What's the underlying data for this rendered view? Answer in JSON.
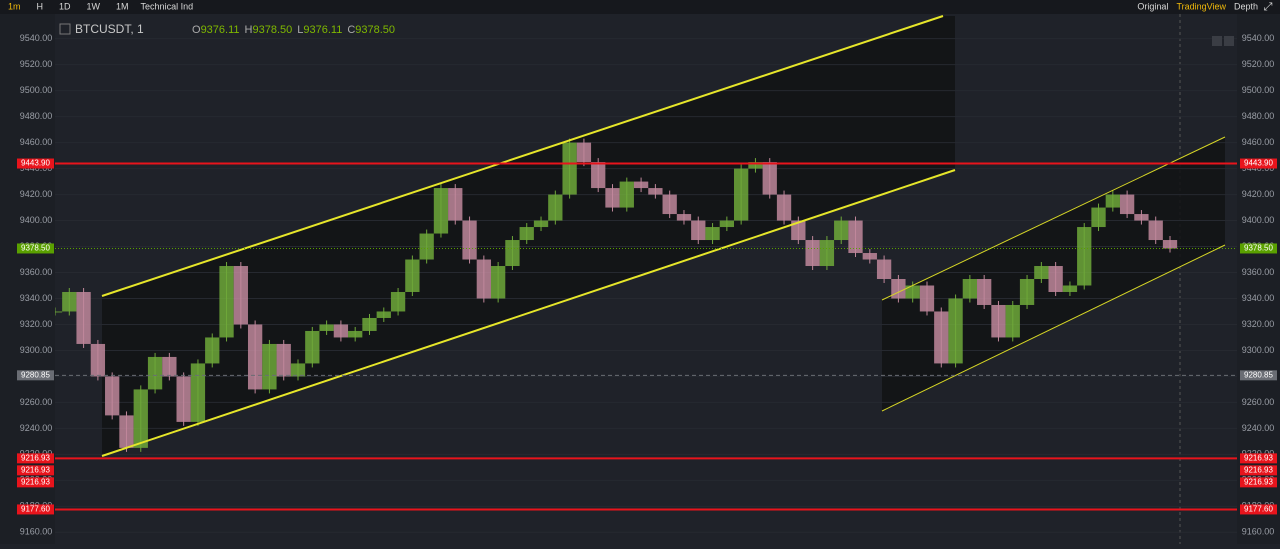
{
  "toolbar": {
    "intervals": [
      "1m",
      "H",
      "1D",
      "1W",
      "1M"
    ],
    "indicators": "Technical Ind",
    "views": [
      "Original",
      "TradingView",
      "Depth"
    ]
  },
  "legend": {
    "symbol": "BTCUSDT, 1",
    "ohlc": [
      {
        "key": "O",
        "value": "9376.11"
      },
      {
        "key": "H",
        "value": "9378.50"
      },
      {
        "key": "L",
        "value": "9376.11"
      },
      {
        "key": "C",
        "value": "9378.50"
      }
    ]
  },
  "chart_data": {
    "type": "candlestick",
    "series": [
      {
        "name": "BTCUSDT",
        "color": "#b98a99",
        "values": [
          9330,
          9345,
          9305,
          9280,
          9250,
          9225,
          9270,
          9295,
          9280,
          9245,
          9290,
          9310,
          9365,
          9320,
          9270,
          9305,
          9280,
          9290,
          9315,
          9320,
          9310,
          9315,
          9325,
          9330,
          9345,
          9370,
          9390,
          9425,
          9400,
          9370,
          9340,
          9365,
          9385,
          9395,
          9400,
          9420,
          9460,
          9445,
          9425,
          9410,
          9430,
          9425,
          9420,
          9405,
          9400,
          9385,
          9395,
          9400,
          9440,
          9445,
          9420,
          9400,
          9385,
          9365,
          9385,
          9400,
          9375,
          9370,
          9355,
          9340,
          9350,
          9330,
          9290,
          9340,
          9355,
          9335,
          9310,
          9335,
          9355,
          9365,
          9345,
          9350,
          9395,
          9410,
          9420,
          9405,
          9400,
          9385,
          9378.5
        ]
      }
    ],
    "ylim": [
      9151,
      9559
    ],
    "yticks": [
      {
        "value": 9160,
        "label": "9160.00"
      },
      {
        "value": 9180,
        "label": "9180.00"
      },
      {
        "value": 9200,
        "label": "9200.00"
      },
      {
        "value": 9220,
        "label": "9220.00"
      },
      {
        "value": 9240,
        "label": "9240.00"
      },
      {
        "value": 9260,
        "label": "9260.00"
      },
      {
        "value": 9280,
        "label": "9280.00"
      },
      {
        "value": 9300,
        "label": "9300.00"
      },
      {
        "value": 9320,
        "label": "9320.00"
      },
      {
        "value": 9340,
        "label": "9340.00"
      },
      {
        "value": 9360,
        "label": "9360.00"
      },
      {
        "value": 9380,
        "label": "9380.00"
      },
      {
        "value": 9400,
        "label": "9400.00"
      },
      {
        "value": 9420,
        "label": "9420.00"
      },
      {
        "value": 9440,
        "label": "9440.00"
      },
      {
        "value": 9460,
        "label": "9460.00"
      },
      {
        "value": 9480,
        "label": "9480.00"
      },
      {
        "value": 9500,
        "label": "9500.00"
      },
      {
        "value": 9520,
        "label": "9520.00"
      },
      {
        "value": 9540,
        "label": "9540.00"
      }
    ],
    "price_lines": [
      {
        "value": 9443.9,
        "label": "9443.90",
        "color": "#e8141c"
      },
      {
        "value": 9378.5,
        "label": "9378.50",
        "color": "#5aa000"
      },
      {
        "value": 9280.85,
        "label": "9280.85",
        "color": "#6a6d74"
      },
      {
        "value": 9216.93,
        "label": "9216.93",
        "color": "#e8141c"
      },
      {
        "value": 9216.93,
        "label": "9216.93",
        "color": "#e8141c"
      },
      {
        "value": 9216.93,
        "label": "9216.93",
        "color": "#e8141c"
      },
      {
        "value": 9177.6,
        "label": "9177.60",
        "color": "#e8141c"
      }
    ]
  }
}
